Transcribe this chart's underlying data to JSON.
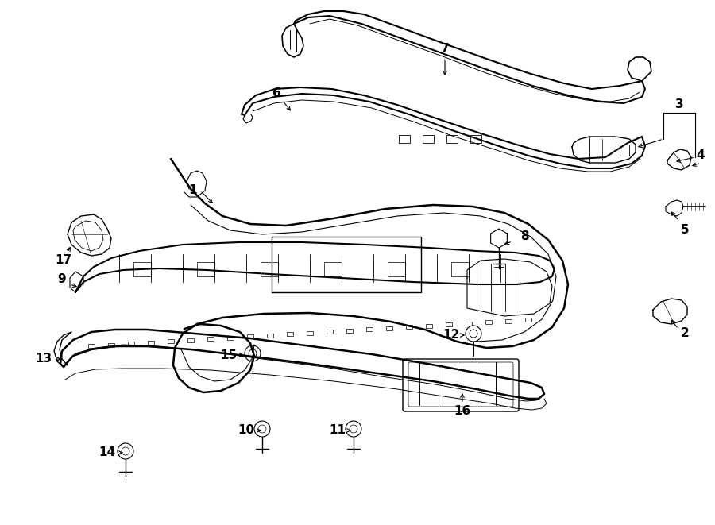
{
  "bg_color": "#ffffff",
  "line_color": "#000000",
  "fig_width": 9.0,
  "fig_height": 6.61,
  "dpi": 100,
  "label_fontsize": 11,
  "small_fontsize": 9
}
